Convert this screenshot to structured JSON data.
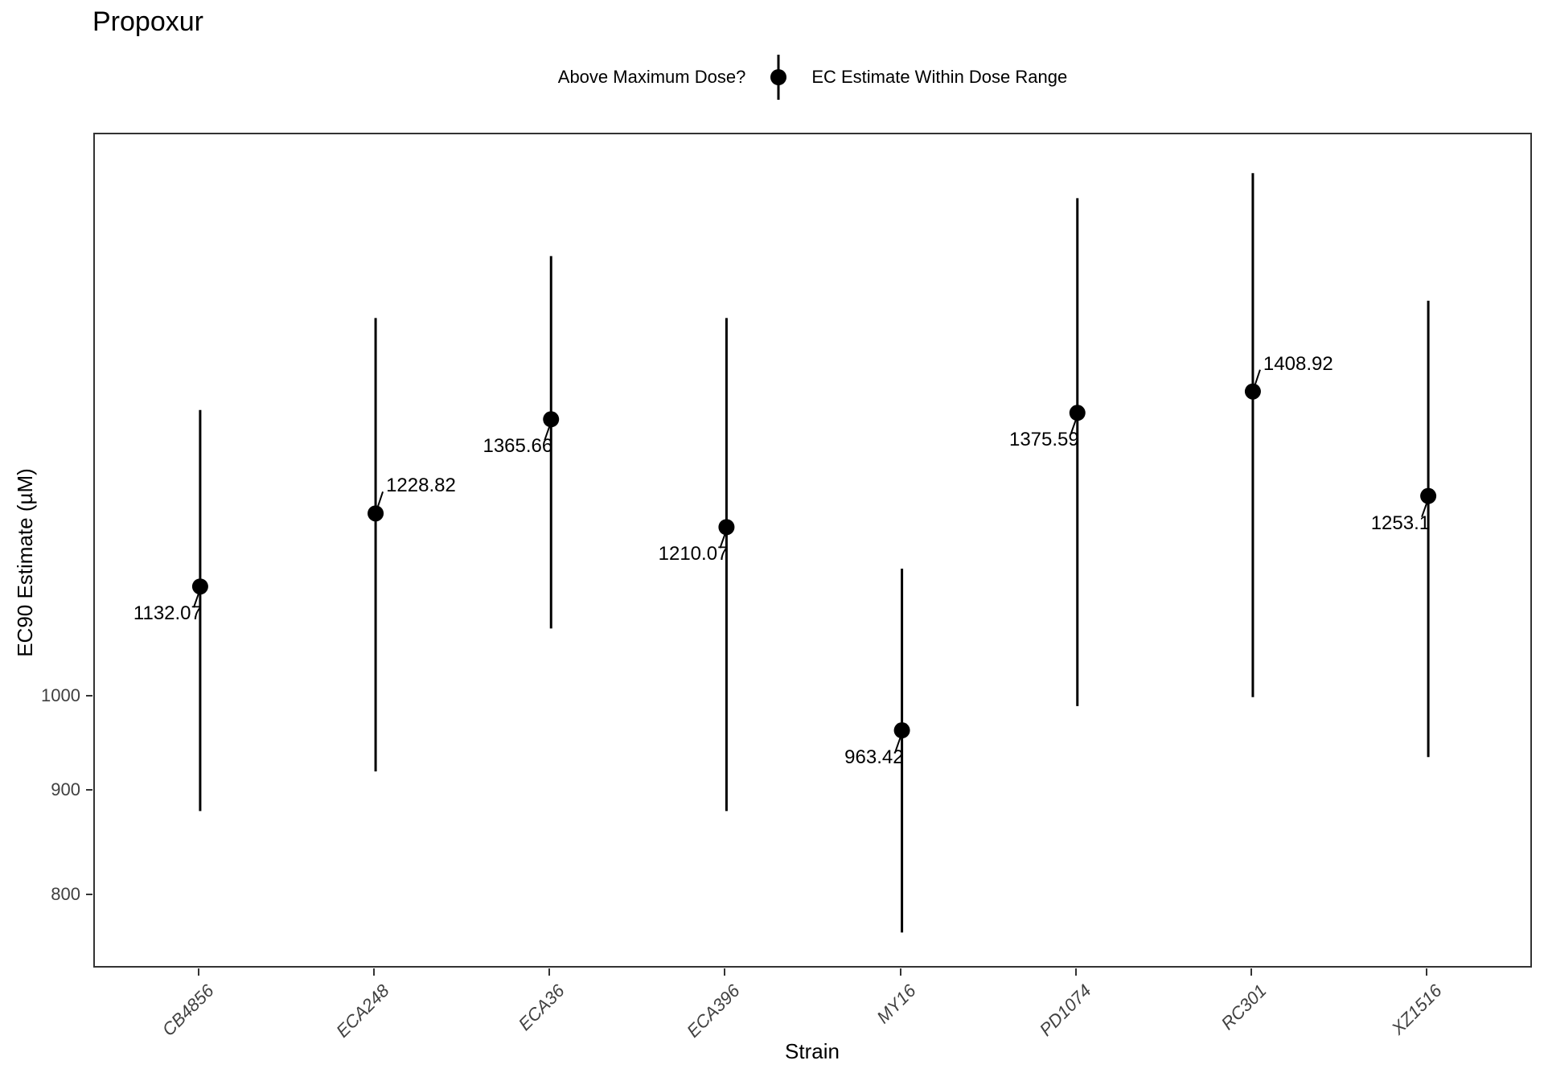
{
  "title": "Propoxur",
  "legend": {
    "title": "Above Maximum Dose?",
    "items": [
      {
        "label": "EC Estimate Within Dose Range",
        "symbol": "pointrange-dot",
        "color": "#000000"
      }
    ]
  },
  "chart_data": {
    "type": "pointrange",
    "title": "Propoxur",
    "xlabel": "Strain",
    "ylabel": "EC90 Estimate (µM)",
    "y_scale": "log10",
    "y_ticks": [
      800,
      900,
      1000
    ],
    "y_range": [
      737,
      1880
    ],
    "grid": "off",
    "legend_position": "top-center",
    "point_color": "#000000",
    "categories": [
      "CB4856",
      "ECA248",
      "ECA36",
      "ECA396",
      "MY16",
      "PD1074",
      "RC301",
      "XZ1516"
    ],
    "series": [
      {
        "name": "EC Estimate Within Dose Range",
        "points": [
          {
            "strain": "CB4856",
            "estimate": 1132.07,
            "lower": 880,
            "upper": 1380,
            "label": "1132.07",
            "label_side": "below-left"
          },
          {
            "strain": "ECA248",
            "estimate": 1228.82,
            "lower": 920,
            "upper": 1530,
            "label": "1228.82",
            "label_side": "above-right"
          },
          {
            "strain": "ECA36",
            "estimate": 1365.66,
            "lower": 1080,
            "upper": 1640,
            "label": "1365.66",
            "label_side": "below-left"
          },
          {
            "strain": "ECA396",
            "estimate": 1210.07,
            "lower": 880,
            "upper": 1530,
            "label": "1210.07",
            "label_side": "below-left"
          },
          {
            "strain": "MY16",
            "estimate": 963.42,
            "lower": 768,
            "upper": 1155,
            "label": "963.42",
            "label_side": "below-left"
          },
          {
            "strain": "PD1074",
            "estimate": 1375.59,
            "lower": 990,
            "upper": 1750,
            "label": "1375.59",
            "label_side": "below-left"
          },
          {
            "strain": "RC301",
            "estimate": 1408.92,
            "lower": 1000,
            "upper": 1800,
            "label": "1408.92",
            "label_side": "above-right"
          },
          {
            "strain": "XZ1516",
            "estimate": 1253.1,
            "lower": 935,
            "upper": 1560,
            "label": "1253.1",
            "label_side": "below-left"
          }
        ]
      }
    ]
  },
  "colors": {
    "point": "#000000",
    "panel_border": "#333333",
    "axis_text": "#404040",
    "background": "#ffffff"
  }
}
